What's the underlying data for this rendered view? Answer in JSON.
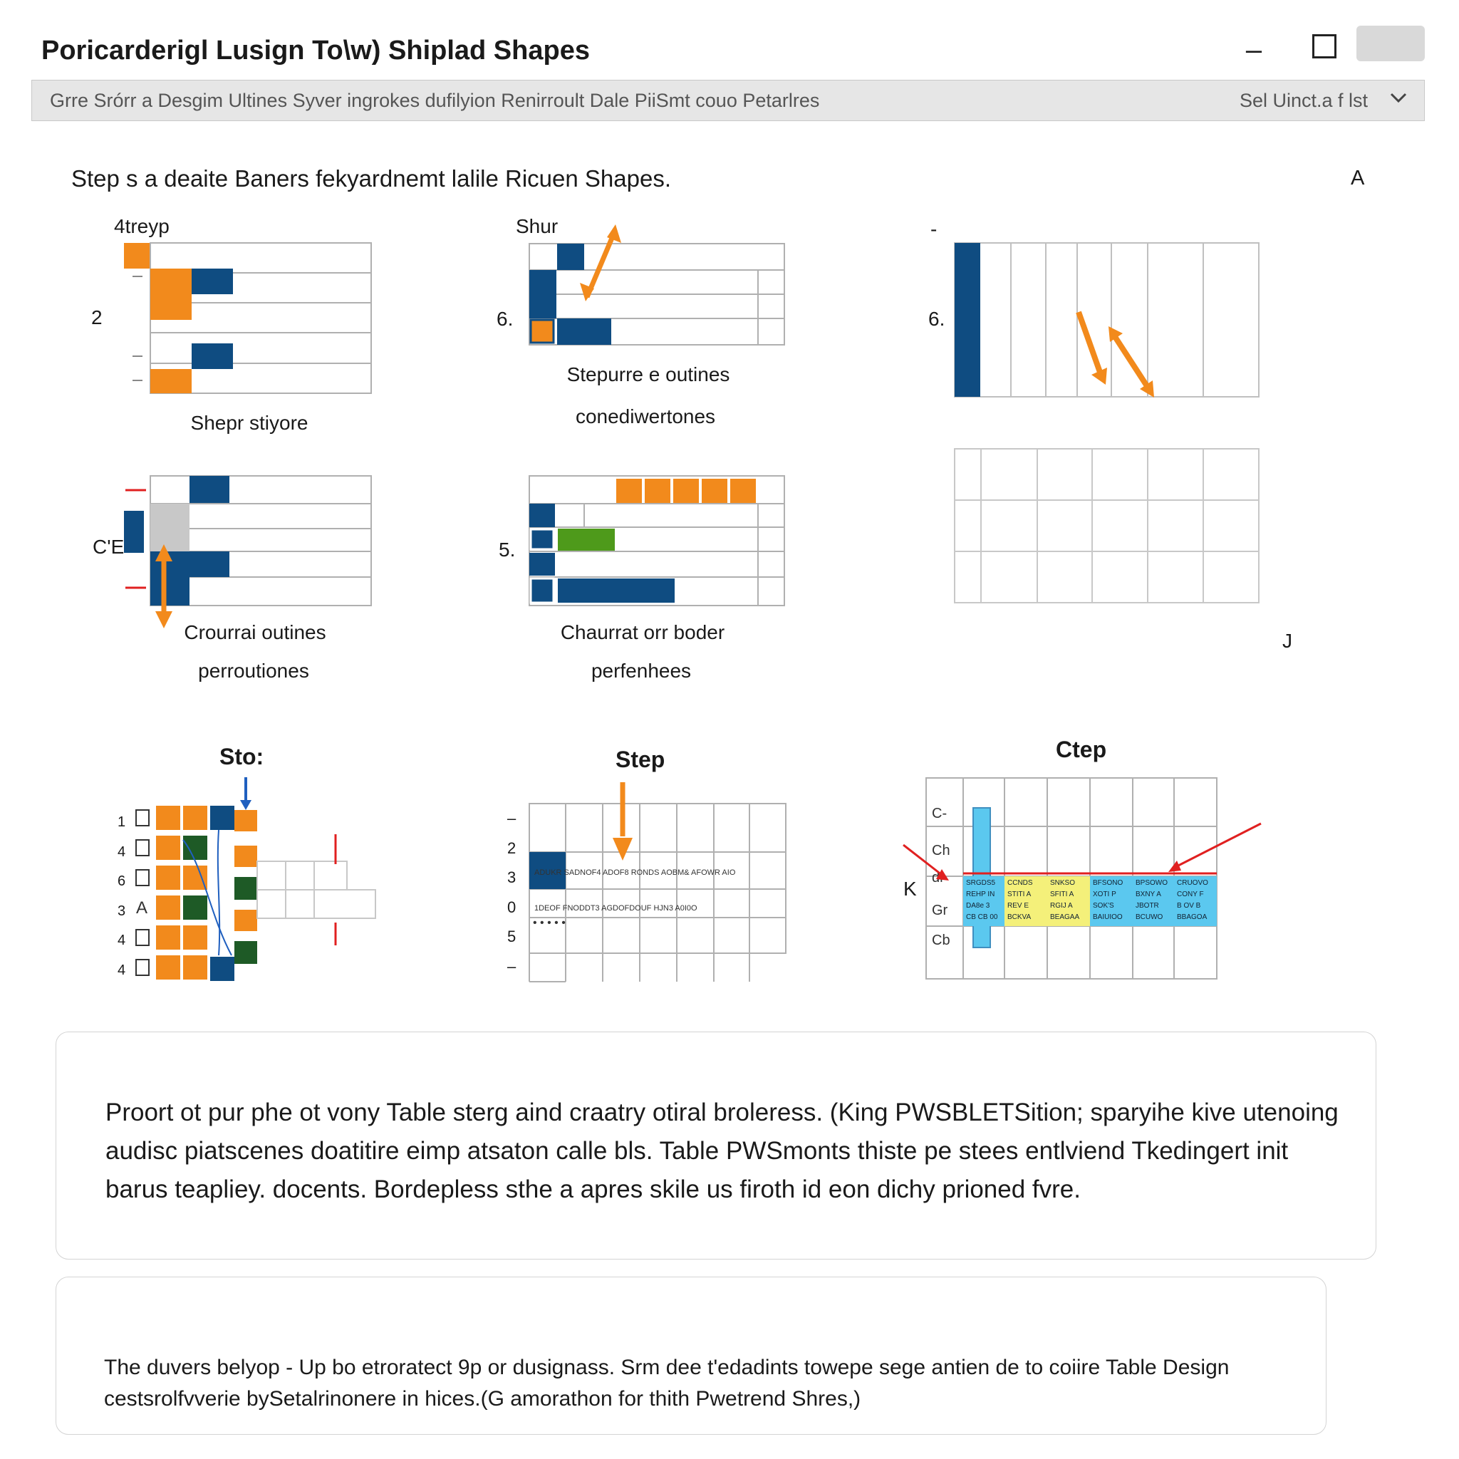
{
  "window": {
    "title": "Poricarderigl Lusign To\\w) Shiplad Shapes",
    "minimize_glyph": "–"
  },
  "toolbar": {
    "text": "Grre Srórr a Desgim Ultines Syver ingrokes dufilyion Renirroult Dale PiiSmt couo Petarlres",
    "select_label": "Sel  Uinct.a f lst",
    "dropdown_icon": "chevron-down-icon"
  },
  "content": {
    "heading": "Step s a deaite Baners fekyardnemt lalile Ricuen Shapes.",
    "corner_letter": "A",
    "corner_letter_bottom": "J"
  },
  "diagrams": {
    "top_left": {
      "title": "4treyp",
      "row_label": "2",
      "caption": "Shepr stiyore"
    },
    "top_middle": {
      "title": "Shur",
      "row_label": "6.",
      "caption_1": "Stepurre e outines",
      "caption_2": "conediwertones"
    },
    "top_right": {
      "title": "-",
      "row_label": "6."
    },
    "mid_left": {
      "row_label": "C'E",
      "caption_1": "Crourrai outines",
      "caption_2": "perroutiones"
    },
    "mid_middle": {
      "row_label": "5.",
      "caption_1": "Chaurrat orr boder",
      "caption_2": "perfenhees"
    }
  },
  "steps": {
    "left": {
      "title": "Sto:",
      "rows": [
        "1",
        "4",
        "6",
        "3",
        "4",
        "4"
      ],
      "row_letter": "A"
    },
    "middle": {
      "title": "Step",
      "rows": [
        "–",
        "2",
        "3",
        "0",
        "5",
        "–"
      ],
      "line_1": "ADUKR SADNOF4 ADOF8 RONDS AOBM& AFOWR AIO",
      "line_2": "1DEOF FNODDT3 AGDOFDOUF HJN3 A0I0O"
    },
    "right": {
      "title": "Ctep",
      "rows": [
        "C-",
        "Ch",
        "dr",
        "Gr",
        "Cb"
      ],
      "side_label": "K",
      "cells": [
        [
          "SRGDS5",
          "REHP IN",
          "DA8e 3",
          "CB CB 00"
        ],
        [
          "CCNDS",
          "STITI A",
          "REV E",
          "BCKVA"
        ],
        [
          "SNKSO",
          "SFITI A",
          "RGIJ A",
          "BEAGAA"
        ],
        [
          "BFSONO",
          "XOTI P",
          "SOK'S",
          "BAIUIOO"
        ],
        [
          "BPSOWO",
          "BXNY A",
          "JBOTR",
          "BCUWO"
        ],
        [
          "CRUOVO",
          "CONY F",
          "B OV B",
          "BBAGOA"
        ]
      ]
    }
  },
  "description": {
    "paragraph": "Proort ot pur phe ot vony Table sterg aind craatry otiral broleress. (King PWSBLETSition; sparyihe kive utenoing audisc piatscenes doatitire eimp atsaton calle bls. Table PWSmonts thiste pe stees entlviend Tkedingert init barus teapliey. docents. Bordepless sthe a apres skile us firoth id eon dichy prioned fvre.",
    "note": "The duvers belyop - Up bo etroratect 9p or dusignass. Srm dee t'edadints towepe sege antien de to coiire Table Design cestsrolfvverie bySetalrinonere in hices.(G amorathon for thith Pwetrend Shres,)"
  },
  "colors": {
    "orange": "#f28a1c",
    "blue": "#0f4c81",
    "green": "#4e9a1b",
    "dark_green": "#1e5a26",
    "gray": "#c8c8c8",
    "grid": "#b0b0b0",
    "red": "#e02020",
    "cyan": "#5bc8ef",
    "yellow": "#f4f07a",
    "toolbar_bg": "#e6e6e6"
  }
}
